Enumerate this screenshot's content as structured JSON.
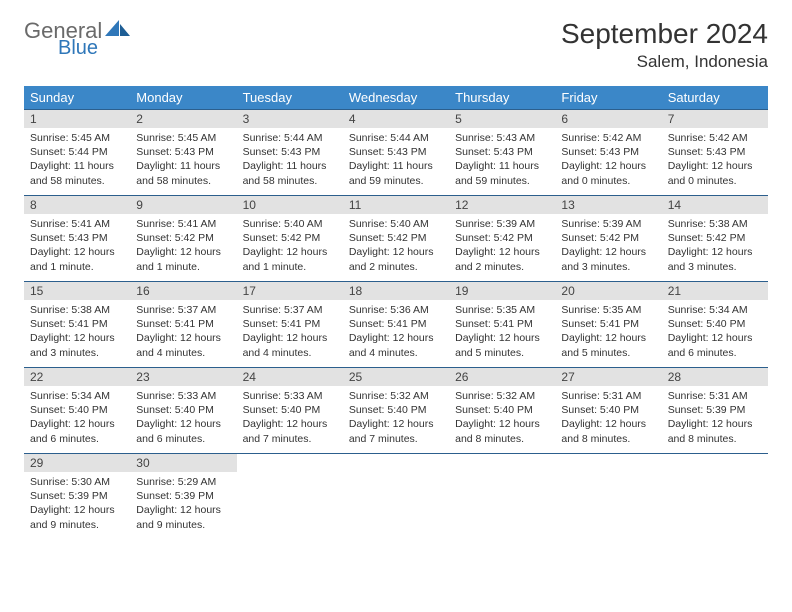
{
  "logo": {
    "general": "General",
    "blue": "Blue"
  },
  "title": "September 2024",
  "location": "Salem, Indonesia",
  "colors": {
    "header_bg": "#3b87c8",
    "daynum_bg": "#e2e2e2",
    "row_border": "#2c5f8d",
    "logo_gray": "#6a6a6a",
    "logo_blue": "#2f77b9"
  },
  "weekdays": [
    "Sunday",
    "Monday",
    "Tuesday",
    "Wednesday",
    "Thursday",
    "Friday",
    "Saturday"
  ],
  "weeks": [
    [
      {
        "n": "1",
        "sr": "5:45 AM",
        "ss": "5:44 PM",
        "dl": "11 hours and 58 minutes."
      },
      {
        "n": "2",
        "sr": "5:45 AM",
        "ss": "5:43 PM",
        "dl": "11 hours and 58 minutes."
      },
      {
        "n": "3",
        "sr": "5:44 AM",
        "ss": "5:43 PM",
        "dl": "11 hours and 58 minutes."
      },
      {
        "n": "4",
        "sr": "5:44 AM",
        "ss": "5:43 PM",
        "dl": "11 hours and 59 minutes."
      },
      {
        "n": "5",
        "sr": "5:43 AM",
        "ss": "5:43 PM",
        "dl": "11 hours and 59 minutes."
      },
      {
        "n": "6",
        "sr": "5:42 AM",
        "ss": "5:43 PM",
        "dl": "12 hours and 0 minutes."
      },
      {
        "n": "7",
        "sr": "5:42 AM",
        "ss": "5:43 PM",
        "dl": "12 hours and 0 minutes."
      }
    ],
    [
      {
        "n": "8",
        "sr": "5:41 AM",
        "ss": "5:43 PM",
        "dl": "12 hours and 1 minute."
      },
      {
        "n": "9",
        "sr": "5:41 AM",
        "ss": "5:42 PM",
        "dl": "12 hours and 1 minute."
      },
      {
        "n": "10",
        "sr": "5:40 AM",
        "ss": "5:42 PM",
        "dl": "12 hours and 1 minute."
      },
      {
        "n": "11",
        "sr": "5:40 AM",
        "ss": "5:42 PM",
        "dl": "12 hours and 2 minutes."
      },
      {
        "n": "12",
        "sr": "5:39 AM",
        "ss": "5:42 PM",
        "dl": "12 hours and 2 minutes."
      },
      {
        "n": "13",
        "sr": "5:39 AM",
        "ss": "5:42 PM",
        "dl": "12 hours and 3 minutes."
      },
      {
        "n": "14",
        "sr": "5:38 AM",
        "ss": "5:42 PM",
        "dl": "12 hours and 3 minutes."
      }
    ],
    [
      {
        "n": "15",
        "sr": "5:38 AM",
        "ss": "5:41 PM",
        "dl": "12 hours and 3 minutes."
      },
      {
        "n": "16",
        "sr": "5:37 AM",
        "ss": "5:41 PM",
        "dl": "12 hours and 4 minutes."
      },
      {
        "n": "17",
        "sr": "5:37 AM",
        "ss": "5:41 PM",
        "dl": "12 hours and 4 minutes."
      },
      {
        "n": "18",
        "sr": "5:36 AM",
        "ss": "5:41 PM",
        "dl": "12 hours and 4 minutes."
      },
      {
        "n": "19",
        "sr": "5:35 AM",
        "ss": "5:41 PM",
        "dl": "12 hours and 5 minutes."
      },
      {
        "n": "20",
        "sr": "5:35 AM",
        "ss": "5:41 PM",
        "dl": "12 hours and 5 minutes."
      },
      {
        "n": "21",
        "sr": "5:34 AM",
        "ss": "5:40 PM",
        "dl": "12 hours and 6 minutes."
      }
    ],
    [
      {
        "n": "22",
        "sr": "5:34 AM",
        "ss": "5:40 PM",
        "dl": "12 hours and 6 minutes."
      },
      {
        "n": "23",
        "sr": "5:33 AM",
        "ss": "5:40 PM",
        "dl": "12 hours and 6 minutes."
      },
      {
        "n": "24",
        "sr": "5:33 AM",
        "ss": "5:40 PM",
        "dl": "12 hours and 7 minutes."
      },
      {
        "n": "25",
        "sr": "5:32 AM",
        "ss": "5:40 PM",
        "dl": "12 hours and 7 minutes."
      },
      {
        "n": "26",
        "sr": "5:32 AM",
        "ss": "5:40 PM",
        "dl": "12 hours and 8 minutes."
      },
      {
        "n": "27",
        "sr": "5:31 AM",
        "ss": "5:40 PM",
        "dl": "12 hours and 8 minutes."
      },
      {
        "n": "28",
        "sr": "5:31 AM",
        "ss": "5:39 PM",
        "dl": "12 hours and 8 minutes."
      }
    ],
    [
      {
        "n": "29",
        "sr": "5:30 AM",
        "ss": "5:39 PM",
        "dl": "12 hours and 9 minutes."
      },
      {
        "n": "30",
        "sr": "5:29 AM",
        "ss": "5:39 PM",
        "dl": "12 hours and 9 minutes."
      },
      null,
      null,
      null,
      null,
      null
    ]
  ],
  "labels": {
    "sunrise": "Sunrise:",
    "sunset": "Sunset:",
    "daylight": "Daylight:"
  }
}
